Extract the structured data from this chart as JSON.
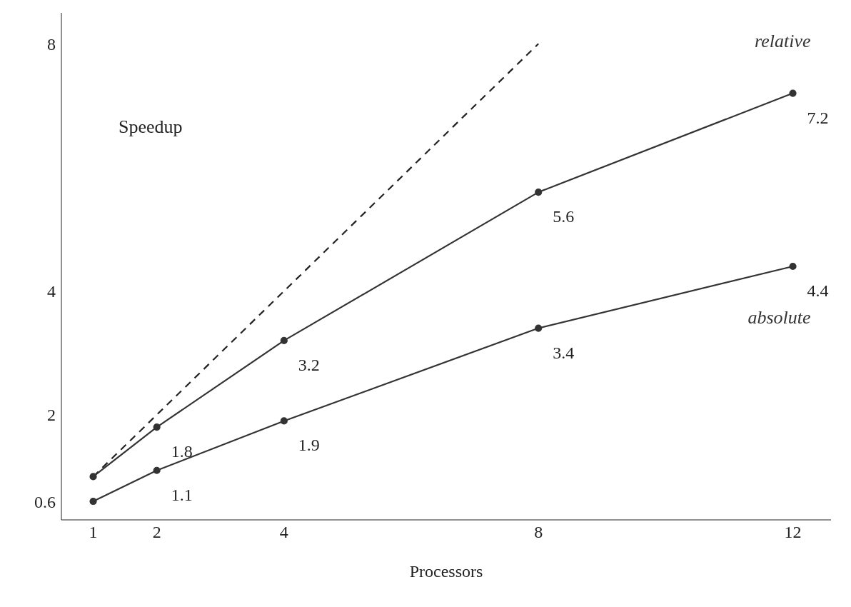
{
  "chart_data": {
    "type": "line",
    "ylabel": "Speedup",
    "xlabel": "Processors",
    "xlim": [
      0.5,
      12.6
    ],
    "xticks": [
      1,
      2,
      4,
      8,
      12
    ],
    "ylim": [
      0.3,
      8.5
    ],
    "yticks": [
      0.6,
      2,
      4,
      8
    ],
    "marker": "circle",
    "line_style": "solid",
    "legend": false,
    "series": [
      {
        "x": [
          1,
          8
        ],
        "values": [
          1,
          8
        ],
        "color": "#222222",
        "line_style": "dashed",
        "marker": "none"
      },
      {
        "name": "relative",
        "x": [
          1,
          2,
          4,
          8,
          12
        ],
        "values": [
          1,
          1.8,
          3.2,
          5.6,
          7.2
        ],
        "color": "#333333",
        "value_labels": [
          null,
          "1.8",
          "3.2",
          "5.6",
          "7.2"
        ]
      },
      {
        "name": "absolute",
        "x": [
          1,
          2,
          4,
          8,
          12
        ],
        "values": [
          0.6,
          1.1,
          1.9,
          3.4,
          4.4
        ],
        "color": "#333333",
        "value_labels": [
          null,
          "1.1",
          "1.9",
          "3.4",
          "4.4"
        ]
      }
    ]
  }
}
